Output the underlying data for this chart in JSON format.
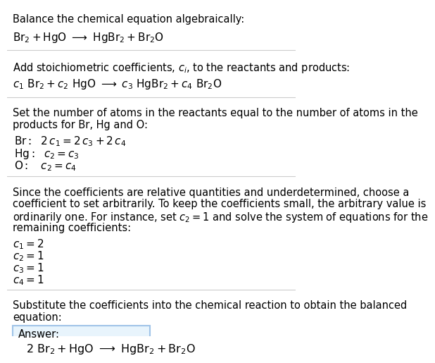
{
  "bg_color": "#ffffff",
  "text_color": "#000000",
  "box_border_color": "#a0c4e8",
  "box_bg_color": "#e8f4fc",
  "separator_color": "#cccccc",
  "section1_line1": "Balance the chemical equation algebraically:",
  "section2_intro": "Add stoichiometric coefficients, $c_i$, to the reactants and products:",
  "section3_intro_l1": "Set the number of atoms in the reactants equal to the number of atoms in the",
  "section3_intro_l2": "products for Br, Hg and O:",
  "section4_l1": "Since the coefficients are relative quantities and underdetermined, choose a",
  "section4_l2": "coefficient to set arbitrarily. To keep the coefficients small, the arbitrary value is",
  "section4_l3": "ordinarily one. For instance, set $c_2 = 1$ and solve the system of equations for the",
  "section4_l4": "remaining coefficients:",
  "section5_l1": "Substitute the coefficients into the chemical reaction to obtain the balanced",
  "section5_l2": "equation:",
  "answer_label": "Answer:",
  "font_size": 10.5,
  "font_size_eq": 11.0
}
